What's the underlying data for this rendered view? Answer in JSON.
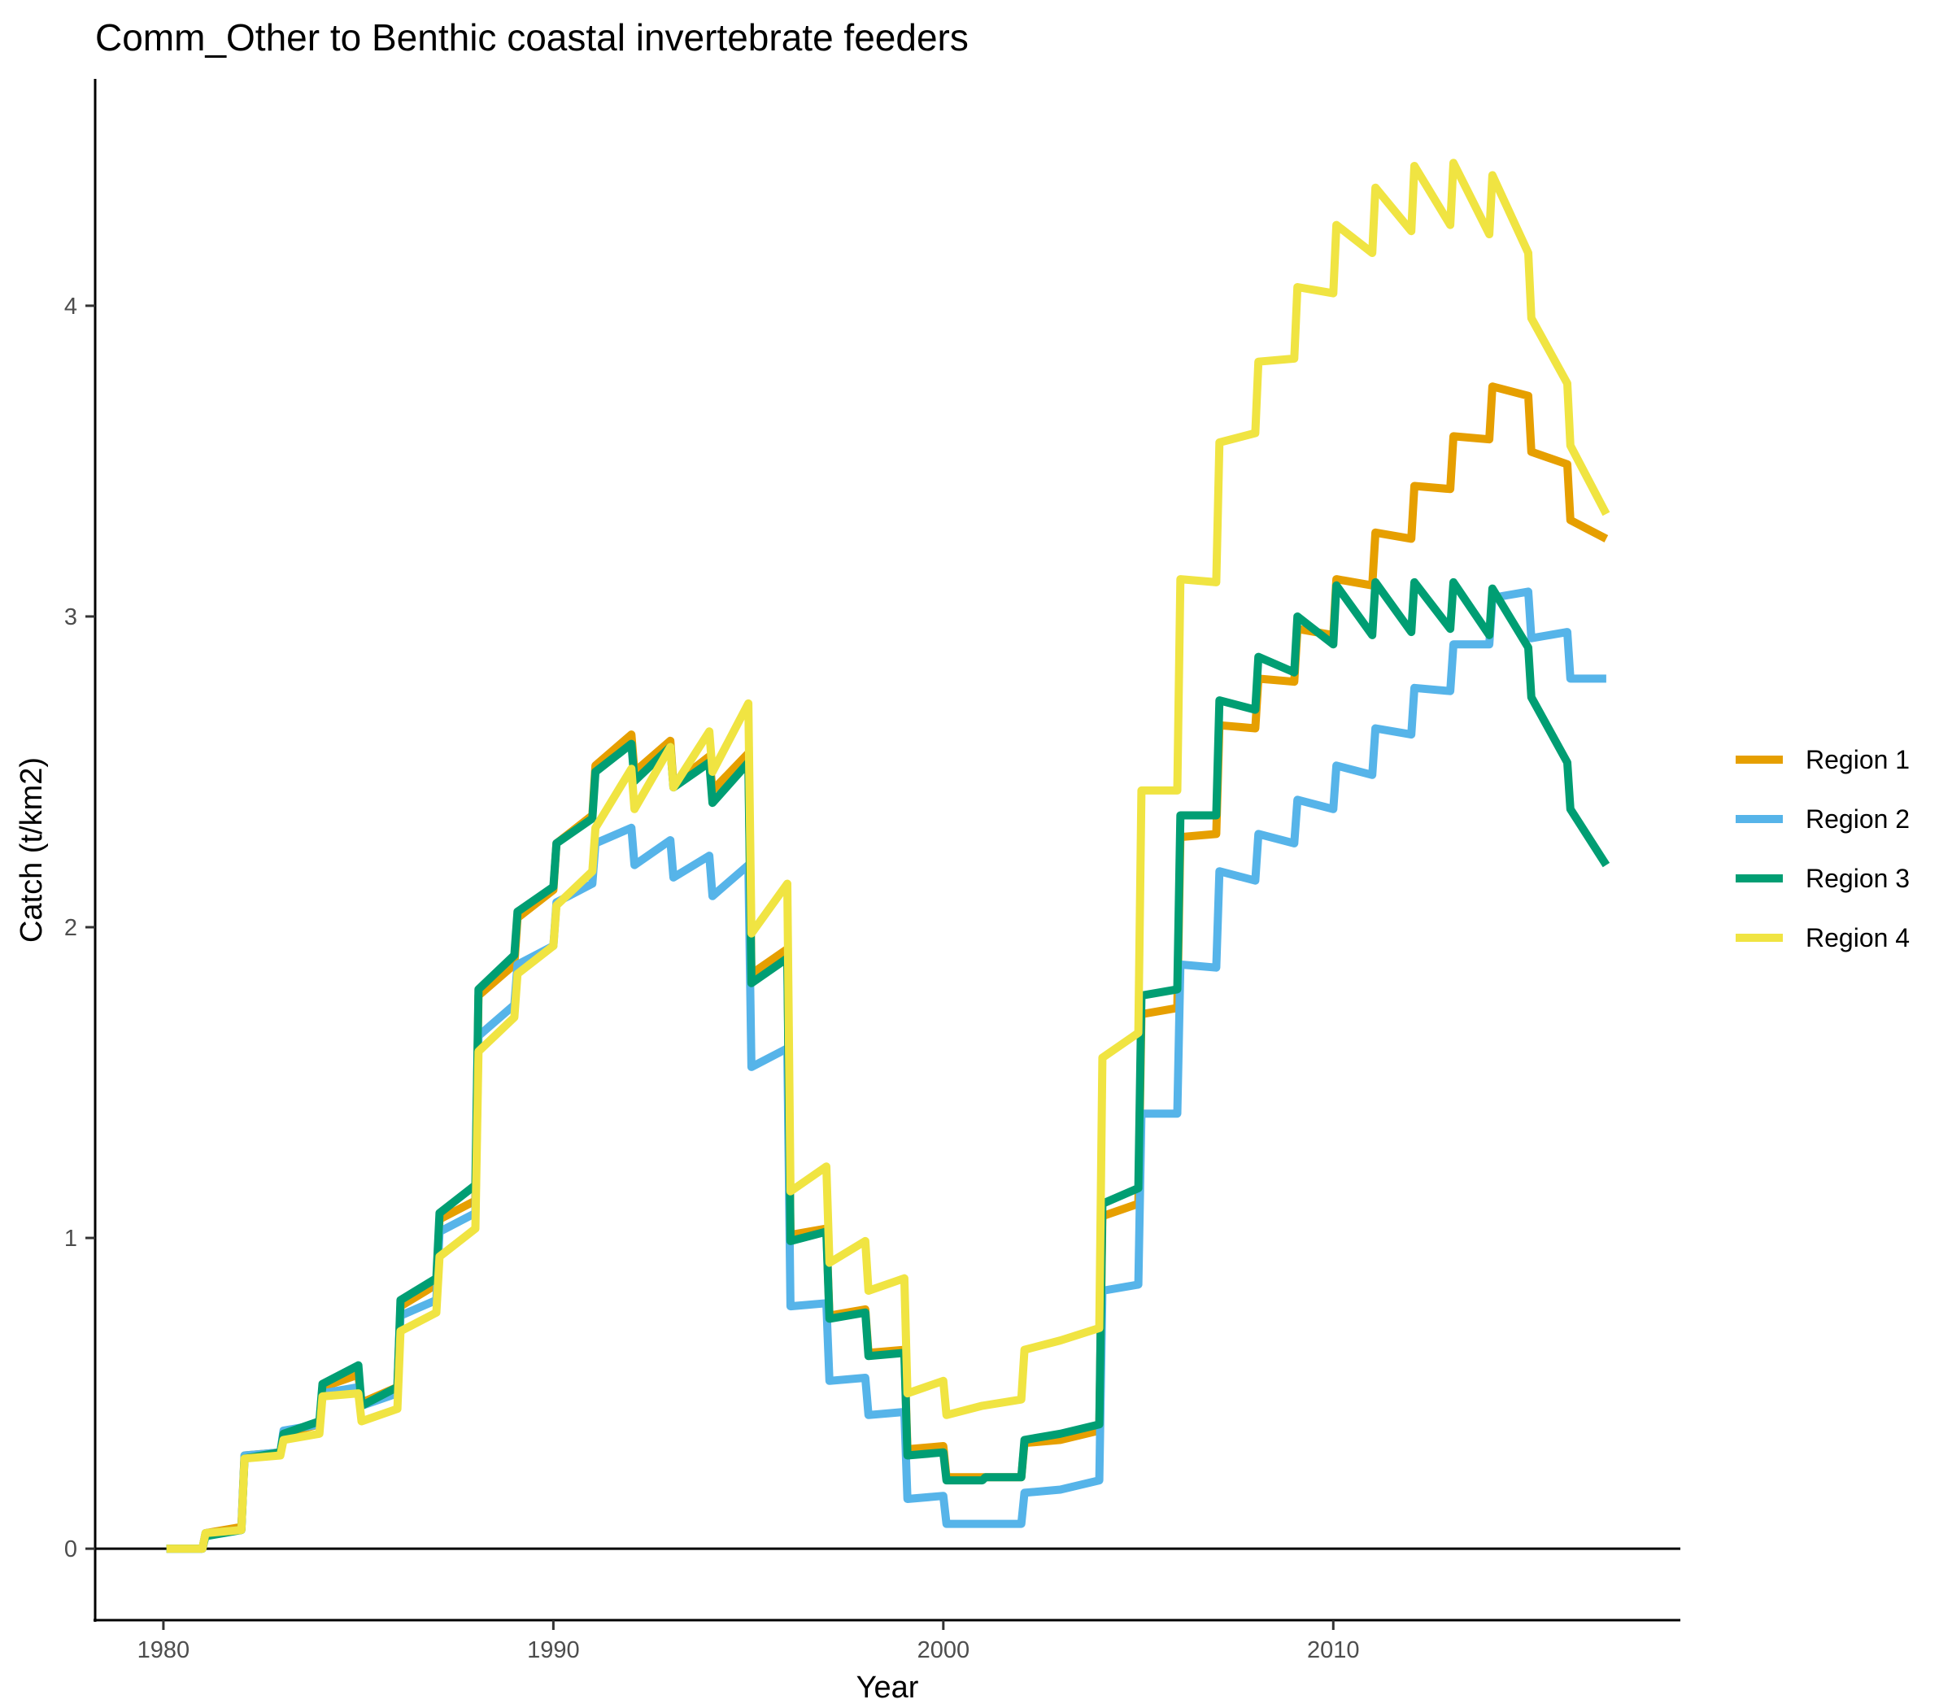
{
  "chart_data": {
    "type": "line",
    "title": "Comm_Other to Benthic coastal invertebrate feeders",
    "xlabel": "Year",
    "ylabel": "Catch (t/km2)",
    "xlim": [
      1978.25,
      2018.9
    ],
    "ylim": [
      -0.23,
      4.73
    ],
    "x_ticks": [
      1980,
      1990,
      2000,
      2010
    ],
    "y_ticks": [
      0,
      1,
      2,
      3,
      4
    ],
    "grid": false,
    "zero_line": true,
    "legend_position": "right",
    "series": [
      {
        "name": "Region 1",
        "color": "#E69F00",
        "points": [
          [
            1980.08,
            0
          ],
          [
            1981,
            0
          ],
          [
            1981.08,
            0.05
          ],
          [
            1982,
            0.07
          ],
          [
            1982.08,
            0.3
          ],
          [
            1983,
            0.31
          ],
          [
            1983.08,
            0.37
          ],
          [
            1984,
            0.4
          ],
          [
            1984.08,
            0.52
          ],
          [
            1985,
            0.56
          ],
          [
            1985.08,
            0.47
          ],
          [
            1986,
            0.52
          ],
          [
            1986.08,
            0.78
          ],
          [
            1987,
            0.85
          ],
          [
            1987.08,
            1.06
          ],
          [
            1988,
            1.12
          ],
          [
            1988.08,
            1.78
          ],
          [
            1989,
            1.88
          ],
          [
            1989.08,
            2.03
          ],
          [
            1990,
            2.12
          ],
          [
            1990.08,
            2.27
          ],
          [
            1991,
            2.36
          ],
          [
            1991.08,
            2.52
          ],
          [
            1992,
            2.62
          ],
          [
            1992.08,
            2.5
          ],
          [
            1993,
            2.6
          ],
          [
            1993.08,
            2.46
          ],
          [
            1994,
            2.55
          ],
          [
            1994.08,
            2.44
          ],
          [
            1995,
            2.56
          ],
          [
            1995.08,
            1.85
          ],
          [
            1996,
            1.93
          ],
          [
            1996.08,
            1.01
          ],
          [
            1997,
            1.03
          ],
          [
            1997.08,
            0.75
          ],
          [
            1998,
            0.77
          ],
          [
            1998.08,
            0.63
          ],
          [
            1999,
            0.64
          ],
          [
            1999.08,
            0.32
          ],
          [
            2000,
            0.33
          ],
          [
            2000.08,
            0.23
          ],
          [
            2001,
            0.23
          ],
          [
            2001.08,
            0.23
          ],
          [
            2002,
            0.23
          ],
          [
            2002.08,
            0.34
          ],
          [
            2003,
            0.35
          ],
          [
            2004,
            0.38
          ],
          [
            2004.08,
            1.07
          ],
          [
            2005,
            1.11
          ],
          [
            2005.08,
            1.72
          ],
          [
            2006,
            1.74
          ],
          [
            2006.08,
            2.29
          ],
          [
            2007,
            2.3
          ],
          [
            2007.08,
            2.65
          ],
          [
            2008,
            2.64
          ],
          [
            2008.08,
            2.8
          ],
          [
            2009,
            2.79
          ],
          [
            2009.08,
            2.96
          ],
          [
            2010,
            2.94
          ],
          [
            2010.08,
            3.12
          ],
          [
            2011,
            3.1
          ],
          [
            2011.08,
            3.27
          ],
          [
            2012,
            3.25
          ],
          [
            2012.08,
            3.42
          ],
          [
            2013,
            3.41
          ],
          [
            2013.08,
            3.58
          ],
          [
            2014,
            3.57
          ],
          [
            2014.08,
            3.74
          ],
          [
            2015,
            3.71
          ],
          [
            2015.08,
            3.53
          ],
          [
            2016,
            3.49
          ],
          [
            2016.08,
            3.31
          ],
          [
            2017,
            3.25
          ]
        ]
      },
      {
        "name": "Region 2",
        "color": "#56B4E9",
        "points": [
          [
            1980.08,
            0
          ],
          [
            1981,
            0
          ],
          [
            1981.08,
            0.05
          ],
          [
            1982,
            0.06
          ],
          [
            1982.08,
            0.3
          ],
          [
            1983,
            0.31
          ],
          [
            1983.08,
            0.38
          ],
          [
            1984,
            0.4
          ],
          [
            1984.08,
            0.5
          ],
          [
            1985,
            0.52
          ],
          [
            1985.08,
            0.46
          ],
          [
            1986,
            0.5
          ],
          [
            1986.08,
            0.75
          ],
          [
            1987,
            0.8
          ],
          [
            1987.08,
            1.02
          ],
          [
            1988,
            1.08
          ],
          [
            1988.08,
            1.65
          ],
          [
            1989,
            1.75
          ],
          [
            1989.08,
            1.88
          ],
          [
            1990,
            1.94
          ],
          [
            1990.08,
            2.08
          ],
          [
            1991,
            2.14
          ],
          [
            1991.08,
            2.27
          ],
          [
            1992,
            2.32
          ],
          [
            1992.08,
            2.2
          ],
          [
            1993,
            2.28
          ],
          [
            1993.08,
            2.16
          ],
          [
            1994,
            2.23
          ],
          [
            1994.08,
            2.1
          ],
          [
            1995,
            2.2
          ],
          [
            1995.08,
            1.55
          ],
          [
            1996,
            1.61
          ],
          [
            1996.08,
            0.78
          ],
          [
            1997,
            0.79
          ],
          [
            1997.08,
            0.54
          ],
          [
            1998,
            0.55
          ],
          [
            1998.08,
            0.43
          ],
          [
            1999,
            0.44
          ],
          [
            1999.08,
            0.16
          ],
          [
            2000,
            0.17
          ],
          [
            2000.08,
            0.08
          ],
          [
            2001,
            0.08
          ],
          [
            2001.08,
            0.08
          ],
          [
            2002,
            0.08
          ],
          [
            2002.08,
            0.18
          ],
          [
            2003,
            0.19
          ],
          [
            2004,
            0.22
          ],
          [
            2004.08,
            0.83
          ],
          [
            2005,
            0.85
          ],
          [
            2005.08,
            1.4
          ],
          [
            2006,
            1.4
          ],
          [
            2006.08,
            1.88
          ],
          [
            2007,
            1.87
          ],
          [
            2007.08,
            2.18
          ],
          [
            2008,
            2.15
          ],
          [
            2008.08,
            2.3
          ],
          [
            2009,
            2.27
          ],
          [
            2009.08,
            2.41
          ],
          [
            2010,
            2.38
          ],
          [
            2010.08,
            2.52
          ],
          [
            2011,
            2.49
          ],
          [
            2011.08,
            2.64
          ],
          [
            2012,
            2.62
          ],
          [
            2012.08,
            2.77
          ],
          [
            2013,
            2.76
          ],
          [
            2013.08,
            2.91
          ],
          [
            2014,
            2.91
          ],
          [
            2014.08,
            3.06
          ],
          [
            2015,
            3.08
          ],
          [
            2015.08,
            2.93
          ],
          [
            2016,
            2.95
          ],
          [
            2016.08,
            2.8
          ],
          [
            2017,
            2.8
          ]
        ]
      },
      {
        "name": "Region 3",
        "color": "#009E73",
        "points": [
          [
            1980.08,
            0
          ],
          [
            1981,
            0
          ],
          [
            1981.08,
            0.04
          ],
          [
            1982,
            0.06
          ],
          [
            1982.08,
            0.29
          ],
          [
            1983,
            0.31
          ],
          [
            1983.08,
            0.37
          ],
          [
            1984,
            0.41
          ],
          [
            1984.08,
            0.53
          ],
          [
            1985,
            0.59
          ],
          [
            1985.08,
            0.46
          ],
          [
            1986,
            0.52
          ],
          [
            1986.08,
            0.8
          ],
          [
            1987,
            0.87
          ],
          [
            1987.08,
            1.08
          ],
          [
            1988,
            1.17
          ],
          [
            1988.08,
            1.8
          ],
          [
            1989,
            1.91
          ],
          [
            1989.08,
            2.05
          ],
          [
            1990,
            2.13
          ],
          [
            1990.08,
            2.27
          ],
          [
            1991,
            2.35
          ],
          [
            1991.08,
            2.5
          ],
          [
            1992,
            2.59
          ],
          [
            1992.08,
            2.47
          ],
          [
            1993,
            2.58
          ],
          [
            1993.08,
            2.45
          ],
          [
            1994,
            2.53
          ],
          [
            1994.08,
            2.4
          ],
          [
            1995,
            2.53
          ],
          [
            1995.08,
            1.82
          ],
          [
            1996,
            1.9
          ],
          [
            1996.08,
            0.99
          ],
          [
            1997,
            1.02
          ],
          [
            1997.08,
            0.74
          ],
          [
            1998,
            0.76
          ],
          [
            1998.08,
            0.62
          ],
          [
            1999,
            0.63
          ],
          [
            1999.08,
            0.3
          ],
          [
            2000,
            0.31
          ],
          [
            2000.08,
            0.22
          ],
          [
            2001,
            0.22
          ],
          [
            2001.08,
            0.23
          ],
          [
            2002,
            0.23
          ],
          [
            2002.08,
            0.35
          ],
          [
            2003,
            0.37
          ],
          [
            2004,
            0.4
          ],
          [
            2004.08,
            1.11
          ],
          [
            2005,
            1.16
          ],
          [
            2005.08,
            1.78
          ],
          [
            2006,
            1.8
          ],
          [
            2006.08,
            2.36
          ],
          [
            2007,
            2.36
          ],
          [
            2007.08,
            2.73
          ],
          [
            2008,
            2.7
          ],
          [
            2008.08,
            2.87
          ],
          [
            2009,
            2.82
          ],
          [
            2009.08,
            3
          ],
          [
            2010,
            2.91
          ],
          [
            2010.08,
            3.1
          ],
          [
            2011,
            2.94
          ],
          [
            2011.08,
            3.11
          ],
          [
            2012,
            2.95
          ],
          [
            2012.08,
            3.11
          ],
          [
            2013,
            2.96
          ],
          [
            2013.08,
            3.11
          ],
          [
            2014,
            2.94
          ],
          [
            2014.08,
            3.09
          ],
          [
            2015,
            2.9
          ],
          [
            2015.08,
            2.74
          ],
          [
            2016,
            2.53
          ],
          [
            2016.08,
            2.38
          ],
          [
            2017,
            2.2
          ]
        ]
      },
      {
        "name": "Region 4",
        "color": "#F0E442",
        "points": [
          [
            1980.08,
            0
          ],
          [
            1981,
            0
          ],
          [
            1981.08,
            0.05
          ],
          [
            1982,
            0.06
          ],
          [
            1982.08,
            0.29
          ],
          [
            1983,
            0.3
          ],
          [
            1983.08,
            0.35
          ],
          [
            1984,
            0.37
          ],
          [
            1984.08,
            0.49
          ],
          [
            1985,
            0.5
          ],
          [
            1985.08,
            0.41
          ],
          [
            1986,
            0.45
          ],
          [
            1986.08,
            0.7
          ],
          [
            1987,
            0.76
          ],
          [
            1987.08,
            0.94
          ],
          [
            1988,
            1.03
          ],
          [
            1988.08,
            1.6
          ],
          [
            1989,
            1.71
          ],
          [
            1989.08,
            1.85
          ],
          [
            1990,
            1.94
          ],
          [
            1990.08,
            2.07
          ],
          [
            1991,
            2.18
          ],
          [
            1991.08,
            2.32
          ],
          [
            1992,
            2.51
          ],
          [
            1992.08,
            2.38
          ],
          [
            1993,
            2.58
          ],
          [
            1993.08,
            2.45
          ],
          [
            1994,
            2.63
          ],
          [
            1994.08,
            2.5
          ],
          [
            1995,
            2.72
          ],
          [
            1995.08,
            1.98
          ],
          [
            1996,
            2.14
          ],
          [
            1996.08,
            1.15
          ],
          [
            1997,
            1.23
          ],
          [
            1997.08,
            0.92
          ],
          [
            1998,
            0.99
          ],
          [
            1998.08,
            0.83
          ],
          [
            1999,
            0.87
          ],
          [
            1999.08,
            0.5
          ],
          [
            2000,
            0.54
          ],
          [
            2000.08,
            0.43
          ],
          [
            2001,
            0.46
          ],
          [
            2002,
            0.48
          ],
          [
            2002.08,
            0.64
          ],
          [
            2003,
            0.67
          ],
          [
            2004,
            0.71
          ],
          [
            2004.08,
            1.58
          ],
          [
            2005,
            1.66
          ],
          [
            2005.08,
            2.44
          ],
          [
            2006,
            2.44
          ],
          [
            2006.08,
            3.12
          ],
          [
            2007,
            3.11
          ],
          [
            2007.08,
            3.56
          ],
          [
            2008,
            3.59
          ],
          [
            2008.08,
            3.82
          ],
          [
            2009,
            3.83
          ],
          [
            2009.08,
            4.06
          ],
          [
            2010,
            4.04
          ],
          [
            2010.08,
            4.26
          ],
          [
            2011,
            4.17
          ],
          [
            2011.08,
            4.38
          ],
          [
            2012,
            4.24
          ],
          [
            2012.08,
            4.45
          ],
          [
            2013,
            4.26
          ],
          [
            2013.08,
            4.46
          ],
          [
            2014,
            4.23
          ],
          [
            2014.08,
            4.42
          ],
          [
            2015,
            4.17
          ],
          [
            2015.08,
            3.96
          ],
          [
            2016,
            3.75
          ],
          [
            2016.08,
            3.55
          ],
          [
            2017,
            3.33
          ]
        ]
      }
    ]
  }
}
